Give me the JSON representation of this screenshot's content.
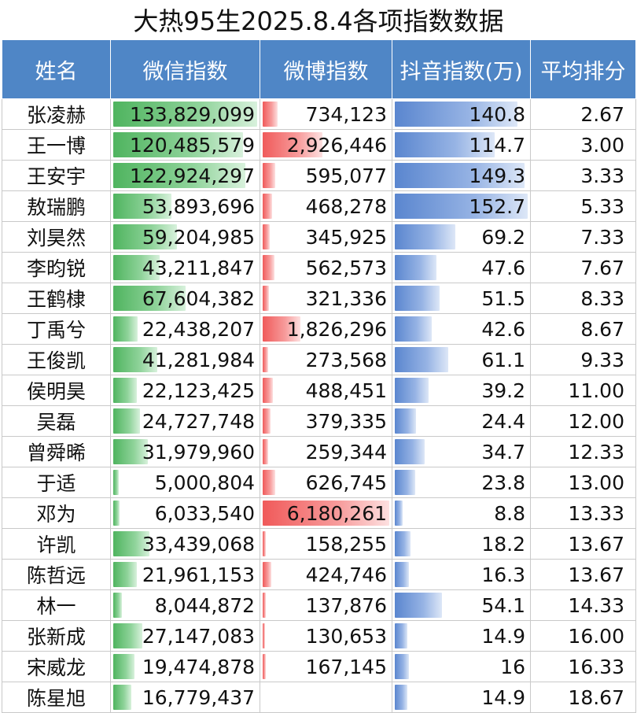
{
  "title": "大热95生2025.8.4各项指数数据",
  "headers": {
    "name": "姓名",
    "weixin": "微信指数",
    "weibo": "微博指数",
    "douyin": "抖音指数(万)",
    "avg": "平均排分"
  },
  "colors": {
    "header_bg": "#4f86c6",
    "weixin_bar": "#4fb45f",
    "weibo_bar": "#f05a5a",
    "douyin_bar": "#5a86cf"
  },
  "rows": [
    {
      "name": "张凌赫",
      "weixin": "133,829,099",
      "weibo": "734,123",
      "douyin": "140.8",
      "avg": "2.67",
      "weixin_value": 133829099,
      "weibo_value": 734123,
      "douyin_value": 140.8
    },
    {
      "name": "王一博",
      "weixin": "120,485,579",
      "weibo": "2,926,446",
      "douyin": "114.7",
      "avg": "3.00",
      "weixin_value": 120485579,
      "weibo_value": 2926446,
      "douyin_value": 114.7
    },
    {
      "name": "王安宇",
      "weixin": "122,924,297",
      "weibo": "595,077",
      "douyin": "149.3",
      "avg": "3.33",
      "weixin_value": 122924297,
      "weibo_value": 595077,
      "douyin_value": 149.3
    },
    {
      "name": "敖瑞鹏",
      "weixin": "53,893,696",
      "weibo": "468,278",
      "douyin": "152.7",
      "avg": "5.33",
      "weixin_value": 53893696,
      "weibo_value": 468278,
      "douyin_value": 152.7
    },
    {
      "name": "刘昊然",
      "weixin": "59,204,985",
      "weibo": "345,925",
      "douyin": "69.2",
      "avg": "7.33",
      "weixin_value": 59204985,
      "weibo_value": 345925,
      "douyin_value": 69.2
    },
    {
      "name": "李昀锐",
      "weixin": "43,211,847",
      "weibo": "562,573",
      "douyin": "47.6",
      "avg": "7.67",
      "weixin_value": 43211847,
      "weibo_value": 562573,
      "douyin_value": 47.6
    },
    {
      "name": "王鹤棣",
      "weixin": "67,604,382",
      "weibo": "321,336",
      "douyin": "51.5",
      "avg": "8.33",
      "weixin_value": 67604382,
      "weibo_value": 321336,
      "douyin_value": 51.5
    },
    {
      "name": "丁禹兮",
      "weixin": "22,438,207",
      "weibo": "1,826,296",
      "douyin": "42.6",
      "avg": "8.67",
      "weixin_value": 22438207,
      "weibo_value": 1826296,
      "douyin_value": 42.6
    },
    {
      "name": "王俊凯",
      "weixin": "41,281,984",
      "weibo": "273,568",
      "douyin": "61.1",
      "avg": "9.33",
      "weixin_value": 41281984,
      "weibo_value": 273568,
      "douyin_value": 61.1
    },
    {
      "name": "侯明昊",
      "weixin": "22,123,425",
      "weibo": "488,451",
      "douyin": "39.2",
      "avg": "11.00",
      "weixin_value": 22123425,
      "weibo_value": 488451,
      "douyin_value": 39.2
    },
    {
      "name": "吴磊",
      "weixin": "24,727,748",
      "weibo": "379,335",
      "douyin": "24.4",
      "avg": "12.00",
      "weixin_value": 24727748,
      "weibo_value": 379335,
      "douyin_value": 24.4
    },
    {
      "name": "曾舜晞",
      "weixin": "31,979,960",
      "weibo": "259,344",
      "douyin": "34.7",
      "avg": "12.33",
      "weixin_value": 31979960,
      "weibo_value": 259344,
      "douyin_value": 34.7
    },
    {
      "name": "于适",
      "weixin": "5,000,804",
      "weibo": "626,745",
      "douyin": "23.8",
      "avg": "13.00",
      "weixin_value": 5000804,
      "weibo_value": 626745,
      "douyin_value": 23.8
    },
    {
      "name": "邓为",
      "weixin": "6,033,540",
      "weibo": "6,180,261",
      "douyin": "8.8",
      "avg": "13.33",
      "weixin_value": 6033540,
      "weibo_value": 6180261,
      "douyin_value": 8.8
    },
    {
      "name": "许凯",
      "weixin": "33,439,068",
      "weibo": "158,255",
      "douyin": "18.2",
      "avg": "13.67",
      "weixin_value": 33439068,
      "weibo_value": 158255,
      "douyin_value": 18.2
    },
    {
      "name": "陈哲远",
      "weixin": "21,961,153",
      "weibo": "424,746",
      "douyin": "16.3",
      "avg": "13.67",
      "weixin_value": 21961153,
      "weibo_value": 424746,
      "douyin_value": 16.3
    },
    {
      "name": "林一",
      "weixin": "8,044,872",
      "weibo": "137,876",
      "douyin": "54.1",
      "avg": "14.33",
      "weixin_value": 8044872,
      "weibo_value": 137876,
      "douyin_value": 54.1
    },
    {
      "name": "张新成",
      "weixin": "27,147,083",
      "weibo": "130,653",
      "douyin": "14.9",
      "avg": "16.00",
      "weixin_value": 27147083,
      "weibo_value": 130653,
      "douyin_value": 14.9
    },
    {
      "name": "宋威龙",
      "weixin": "19,474,878",
      "weibo": "167,145",
      "douyin": "16",
      "avg": "16.33",
      "weixin_value": 19474878,
      "weibo_value": 167145,
      "douyin_value": 16
    },
    {
      "name": "陈星旭",
      "weixin": "16,779,437",
      "weibo": "",
      "douyin": "14.9",
      "avg": "18.67",
      "weixin_value": 16779437,
      "weibo_value": 0,
      "douyin_value": 14.9
    }
  ]
}
